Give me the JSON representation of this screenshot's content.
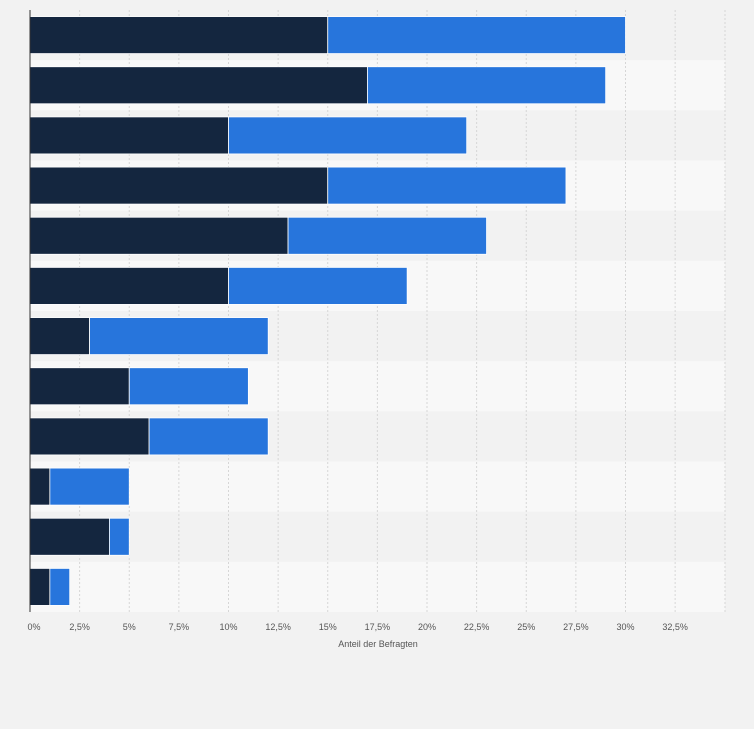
{
  "chart_data": {
    "type": "bar",
    "orientation": "horizontal",
    "stacked": true,
    "title": "",
    "xlabel": "Anteil der Befragten",
    "ylabel": "",
    "xlim": [
      0,
      35
    ],
    "grid": true,
    "x_tick_labels": [
      "0%",
      "2,5%",
      "5%",
      "7,5%",
      "10%",
      "12,5%",
      "15%",
      "17,5%",
      "20%",
      "22,5%",
      "25%",
      "27,5%",
      "30%",
      "32,5%"
    ],
    "x_tick_values": [
      0,
      2.5,
      5,
      7.5,
      10,
      12.5,
      15,
      17.5,
      20,
      22.5,
      25,
      27.5,
      30,
      32.5
    ],
    "categories": [
      "",
      "",
      "",
      "",
      "",
      "",
      "",
      "",
      "",
      "",
      "",
      ""
    ],
    "series": [
      {
        "values": [
          15,
          17,
          10,
          15,
          13,
          10,
          3,
          5,
          6,
          1,
          4,
          1
        ],
        "color": "#14263f"
      },
      {
        "values": [
          15,
          12,
          12,
          12,
          10,
          9,
          9,
          6,
          6,
          4,
          1,
          1
        ],
        "color": "#2775dc"
      }
    ]
  }
}
